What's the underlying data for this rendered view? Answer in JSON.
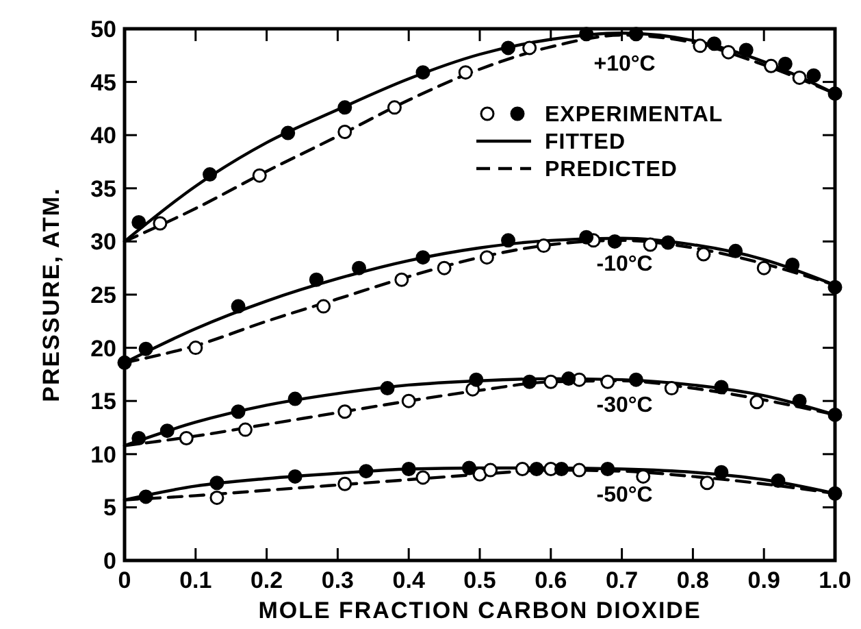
{
  "chart_data": {
    "type": "line",
    "xlabel": "MOLE FRACTION CARBON DIOXIDE",
    "ylabel": "PRESSURE, ATM.",
    "xlim": [
      0,
      1
    ],
    "ylim": [
      0,
      50
    ],
    "xticks": [
      {
        "value": 0,
        "label": "0"
      },
      0.1,
      0.2,
      0.3,
      0.4,
      0.5,
      0.6,
      0.7,
      0.8,
      0.9,
      {
        "value": 1,
        "label": "1.0"
      }
    ],
    "yticks": [
      0,
      5,
      10,
      15,
      20,
      25,
      30,
      35,
      40,
      45,
      50
    ],
    "grid": false,
    "legend": "top right",
    "annotations": [
      "+10°C",
      "-10°C",
      "-30°C",
      "-50°C"
    ],
    "series": [
      {
        "type": "scatter",
        "color": "#ffffff",
        "marker": "circle",
        "x": [
          0.05,
          0.19,
          0.31,
          0.38,
          0.48,
          0.57,
          0.81,
          0.85,
          0.91,
          0.95
        ],
        "values": [
          31.7,
          36.2,
          40.3,
          42.6,
          45.9,
          48.2,
          48.4,
          47.8,
          46.5,
          45.4
        ]
      },
      {
        "name": "EXPERIMENTAL",
        "type": "scatter",
        "color": "#000000",
        "marker": "circle",
        "x": [
          0.02,
          0.12,
          0.23,
          0.31,
          0.42,
          0.54,
          0.65,
          0.72,
          0.83,
          0.875,
          0.93,
          0.97,
          1
        ],
        "values": [
          31.8,
          36.3,
          40.2,
          42.6,
          45.9,
          48.2,
          49.5,
          49.5,
          48.6,
          48,
          46.7,
          45.6,
          43.9
        ]
      },
      {
        "name": "FITTED",
        "color": "#000000",
        "line_style": "solid",
        "x": [
          0,
          0.1,
          0.2,
          0.3,
          0.4,
          0.5,
          0.6,
          0.7,
          0.8,
          0.9,
          1
        ],
        "values": [
          30,
          35.2,
          39.3,
          42.4,
          45.3,
          47.6,
          49,
          49.6,
          48.9,
          46.9,
          43.9
        ]
      },
      {
        "name": "PREDICTED",
        "color": "#000000",
        "line_style": "dashed",
        "x": [
          0,
          0.1,
          0.2,
          0.3,
          0.4,
          0.5,
          0.6,
          0.7,
          0.8,
          0.9,
          1
        ],
        "values": [
          30,
          33.1,
          36.6,
          39.9,
          43.3,
          46.2,
          48.3,
          49.4,
          48.7,
          46.6,
          43.9
        ]
      },
      {
        "type": "scatter",
        "color": "#ffffff",
        "marker": "circle",
        "x": [
          0.1,
          0.28,
          0.39,
          0.45,
          0.51,
          0.59,
          0.66,
          0.74,
          0.815,
          0.9
        ],
        "values": [
          20,
          23.9,
          26.4,
          27.5,
          28.5,
          29.6,
          30.1,
          29.7,
          28.8,
          27.5
        ]
      },
      {
        "type": "scatter",
        "color": "#000000",
        "marker": "circle",
        "x": [
          0,
          0.03,
          0.16,
          0.27,
          0.33,
          0.42,
          0.54,
          0.65,
          0.69,
          0.765,
          0.86,
          0.94,
          1
        ],
        "values": [
          18.6,
          19.9,
          23.9,
          26.4,
          27.5,
          28.5,
          30.1,
          30.4,
          30,
          29.9,
          29.1,
          27.8,
          25.7
        ]
      },
      {
        "color": "#000000",
        "line_style": "solid",
        "x": [
          0,
          0.1,
          0.2,
          0.3,
          0.4,
          0.5,
          0.6,
          0.7,
          0.8,
          0.9,
          1
        ],
        "values": [
          18.6,
          21.8,
          24.4,
          26.5,
          28.2,
          29.4,
          30.1,
          30.3,
          29.7,
          28.3,
          25.9
        ]
      },
      {
        "color": "#000000",
        "line_style": "dashed",
        "x": [
          0,
          0.1,
          0.2,
          0.3,
          0.4,
          0.5,
          0.6,
          0.7,
          0.8,
          0.9,
          1
        ],
        "values": [
          18.6,
          20.2,
          22.5,
          24.6,
          26.7,
          28.5,
          29.7,
          30.1,
          29.4,
          27.9,
          25.9
        ]
      },
      {
        "type": "scatter",
        "color": "#ffffff",
        "marker": "circle",
        "x": [
          0.087,
          0.17,
          0.31,
          0.4,
          0.49,
          0.6,
          0.64,
          0.68,
          0.77,
          0.89
        ],
        "values": [
          11.5,
          12.3,
          14,
          15,
          16.1,
          16.8,
          17,
          16.8,
          16.2,
          14.9
        ]
      },
      {
        "type": "scatter",
        "color": "#000000",
        "marker": "circle",
        "x": [
          0.02,
          0.06,
          0.16,
          0.24,
          0.37,
          0.495,
          0.57,
          0.625,
          0.72,
          0.84,
          0.95,
          1
        ],
        "values": [
          11.5,
          12.2,
          14,
          15.2,
          16.2,
          17,
          16.8,
          17.1,
          17,
          16.3,
          15,
          13.7
        ]
      },
      {
        "color": "#000000",
        "line_style": "solid",
        "x": [
          0,
          0.1,
          0.2,
          0.3,
          0.4,
          0.5,
          0.6,
          0.7,
          0.8,
          0.9,
          1
        ],
        "values": [
          10.8,
          13,
          14.6,
          15.7,
          16.5,
          16.9,
          17.1,
          17,
          16.5,
          15.5,
          13.7
        ]
      },
      {
        "color": "#000000",
        "line_style": "dashed",
        "x": [
          0,
          0.1,
          0.2,
          0.3,
          0.4,
          0.5,
          0.6,
          0.7,
          0.8,
          0.9,
          1
        ],
        "values": [
          10.8,
          11.7,
          12.8,
          13.9,
          15,
          16,
          16.8,
          16.9,
          16.2,
          15.1,
          13.7
        ]
      },
      {
        "type": "scatter",
        "color": "#ffffff",
        "marker": "circle",
        "x": [
          0.13,
          0.31,
          0.42,
          0.5,
          0.515,
          0.56,
          0.6,
          0.64,
          0.73,
          0.82
        ],
        "values": [
          5.9,
          7.2,
          7.8,
          8.1,
          8.5,
          8.6,
          8.6,
          8.5,
          7.9,
          7.3
        ]
      },
      {
        "type": "scatter",
        "color": "#000000",
        "marker": "circle",
        "x": [
          0.03,
          0.13,
          0.24,
          0.34,
          0.4,
          0.485,
          0.58,
          0.615,
          0.68,
          0.84,
          0.92,
          1
        ],
        "values": [
          6,
          7.3,
          7.9,
          8.4,
          8.6,
          8.7,
          8.6,
          8.6,
          8.6,
          8.3,
          7.5,
          6.3
        ]
      },
      {
        "color": "#000000",
        "line_style": "solid",
        "x": [
          0,
          0.1,
          0.2,
          0.3,
          0.4,
          0.5,
          0.6,
          0.7,
          0.8,
          0.9,
          1
        ],
        "values": [
          5.7,
          7,
          7.7,
          8.2,
          8.6,
          8.7,
          8.7,
          8.6,
          8.3,
          7.6,
          6.3
        ]
      },
      {
        "color": "#000000",
        "line_style": "dashed",
        "x": [
          0,
          0.1,
          0.2,
          0.3,
          0.4,
          0.5,
          0.6,
          0.7,
          0.8,
          0.9,
          1
        ],
        "values": [
          5.7,
          6.1,
          6.6,
          7.1,
          7.6,
          8.1,
          8.5,
          8.4,
          7.9,
          7.2,
          6.3
        ]
      }
    ]
  }
}
